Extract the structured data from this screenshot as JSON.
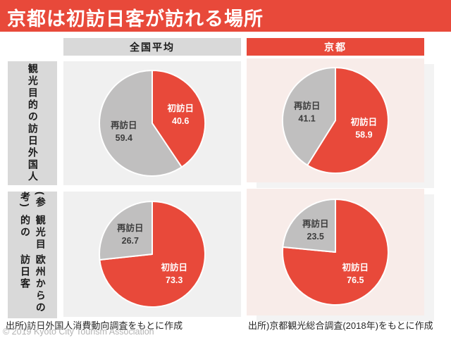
{
  "title": "京都は初訪日客が訪れる場所",
  "column_headers": {
    "national": "全国平均",
    "kyoto": "京都"
  },
  "row_labels": {
    "row1": {
      "lines": [
        "観光目的の",
        "訪日外国人"
      ],
      "full": "観光目的の訪日外国人"
    },
    "row2": {
      "lines": [
        "(参考)",
        "観光目的の",
        "欧州からの訪日客"
      ],
      "full": "(参考)観光目的の欧州からの訪日客"
    }
  },
  "chart_data": [
    {
      "type": "pie",
      "column": "全国平均",
      "row": "観光目的の訪日外国人",
      "unit": "percent",
      "start_angle": "12-oclock",
      "direction": "clockwise",
      "slices": [
        {
          "label": "初訪日",
          "value": 40.6,
          "color": "#E8493A",
          "label_color": "#FFFFFF"
        },
        {
          "label": "再訪日",
          "value": 59.4,
          "color": "#C0BFBF",
          "label_color": "#3D3D3D"
        }
      ]
    },
    {
      "type": "pie",
      "column": "京都",
      "row": "観光目的の訪日外国人",
      "unit": "percent",
      "start_angle": "12-oclock",
      "direction": "clockwise",
      "slices": [
        {
          "label": "初訪日",
          "value": 58.9,
          "color": "#E8493A",
          "label_color": "#FFFFFF"
        },
        {
          "label": "再訪日",
          "value": 41.1,
          "color": "#C0BFBF",
          "label_color": "#3D3D3D"
        }
      ]
    },
    {
      "type": "pie",
      "column": "全国平均",
      "row": "(参考)観光目的の欧州からの訪日客",
      "unit": "percent",
      "start_angle": "12-oclock",
      "direction": "clockwise",
      "slices": [
        {
          "label": "初訪日",
          "value": 73.3,
          "color": "#E8493A",
          "label_color": "#FFFFFF"
        },
        {
          "label": "再訪日",
          "value": 26.7,
          "color": "#C0BFBF",
          "label_color": "#3D3D3D"
        }
      ]
    },
    {
      "type": "pie",
      "column": "京都",
      "row": "(参考)観光目的の欧州からの訪日客",
      "unit": "percent",
      "start_angle": "12-oclock",
      "direction": "clockwise",
      "slices": [
        {
          "label": "初訪日",
          "value": 76.5,
          "color": "#E8493A",
          "label_color": "#FFFFFF"
        },
        {
          "label": "再訪日",
          "value": 23.5,
          "color": "#C0BFBF",
          "label_color": "#3D3D3D"
        }
      ]
    }
  ],
  "footer": {
    "source_left": "出所)訪日外国人消費動向調査をもとに作成",
    "source_right": "出所)京都観光総合調査(2018年)をもとに作成",
    "copyright": "© 2019 Kyoto City Tourism Association"
  },
  "colors": {
    "accent_red": "#E8493A",
    "pie_gray": "#C0BFBF",
    "header_gray": "#D9D9D9",
    "panel_gray": "#F0F0F0",
    "panel_pink": "#F8ECE9",
    "shadow_gray": "#F3F3F3"
  }
}
